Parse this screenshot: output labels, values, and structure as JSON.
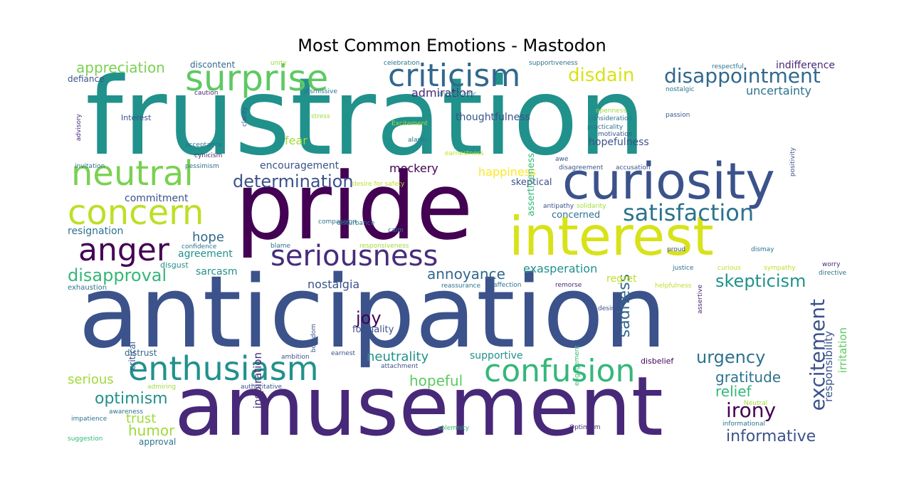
{
  "chart_data": {
    "type": "wordcloud",
    "title": "Most Common Emotions - Mastodon",
    "colormap": "viridis",
    "words": [
      {
        "text": "frustration",
        "weight": 1.0,
        "color": "#21918c"
      },
      {
        "text": "anticipation",
        "weight": 0.98,
        "color": "#3b528b"
      },
      {
        "text": "amusement",
        "weight": 0.95,
        "color": "#482878"
      },
      {
        "text": "pride",
        "weight": 0.9,
        "color": "#440154"
      },
      {
        "text": "interest",
        "weight": 0.6,
        "color": "#d8e219"
      },
      {
        "text": "curiosity",
        "weight": 0.55,
        "color": "#3b528b"
      },
      {
        "text": "surprise",
        "weight": 0.42,
        "color": "#5ec962"
      },
      {
        "text": "criticism",
        "weight": 0.4,
        "color": "#31688e"
      },
      {
        "text": "enthusiasm",
        "weight": 0.42,
        "color": "#21918c"
      },
      {
        "text": "confusion",
        "weight": 0.4,
        "color": "#35b779"
      },
      {
        "text": "neutral",
        "weight": 0.42,
        "color": "#7ad151"
      },
      {
        "text": "concern",
        "weight": 0.42,
        "color": "#bddf26"
      },
      {
        "text": "anger",
        "weight": 0.35,
        "color": "#440154"
      },
      {
        "text": "seriousness",
        "weight": 0.35,
        "color": "#472c7a"
      },
      {
        "text": "satisfaction",
        "weight": 0.3,
        "color": "#2c728e"
      },
      {
        "text": "disappointment",
        "weight": 0.26,
        "color": "#31688e"
      },
      {
        "text": "excitement",
        "weight": 0.25,
        "color": "#3b528b"
      },
      {
        "text": "determination",
        "weight": 0.2,
        "color": "#3b528b"
      },
      {
        "text": "disapproval",
        "weight": 0.2,
        "color": "#35b779"
      },
      {
        "text": "skepticism",
        "weight": 0.2,
        "color": "#21918c"
      },
      {
        "text": "irony",
        "weight": 0.2,
        "color": "#440154"
      },
      {
        "text": "urgency",
        "weight": 0.18,
        "color": "#2c728e"
      },
      {
        "text": "informative",
        "weight": 0.18,
        "color": "#3b528b"
      },
      {
        "text": "annoyance",
        "weight": 0.18,
        "color": "#31688e"
      },
      {
        "text": "disdain",
        "weight": 0.16,
        "color": "#d8e219"
      },
      {
        "text": "appreciation",
        "weight": 0.15,
        "color": "#7ad151"
      },
      {
        "text": "optimism",
        "weight": 0.15,
        "color": "#21918c"
      },
      {
        "text": "sadness",
        "weight": 0.15,
        "color": "#31688e"
      },
      {
        "text": "hopeful",
        "weight": 0.14,
        "color": "#5ec962"
      },
      {
        "text": "joy",
        "weight": 0.14,
        "color": "#440154"
      },
      {
        "text": "humor",
        "weight": 0.14,
        "color": "#a0da39"
      },
      {
        "text": "gratitude",
        "weight": 0.14,
        "color": "#2c728e"
      },
      {
        "text": "relief",
        "weight": 0.14,
        "color": "#35b779"
      },
      {
        "text": "hope",
        "weight": 0.13,
        "color": "#31688e"
      },
      {
        "text": "neutrality",
        "weight": 0.13,
        "color": "#21918c"
      },
      {
        "text": "trust",
        "weight": 0.13,
        "color": "#a0da39"
      },
      {
        "text": "serious",
        "weight": 0.13,
        "color": "#a0da39"
      },
      {
        "text": "uncertainty",
        "weight": 0.12,
        "color": "#2c728e"
      },
      {
        "text": "admiration",
        "weight": 0.12,
        "color": "#482878"
      },
      {
        "text": "fear",
        "weight": 0.12,
        "color": "#a0da39"
      },
      {
        "text": "mockery",
        "weight": 0.12,
        "color": "#440154"
      },
      {
        "text": "happiness",
        "weight": 0.12,
        "color": "#fde725"
      },
      {
        "text": "nostalgia",
        "weight": 0.12,
        "color": "#3b528b"
      },
      {
        "text": "exasperation",
        "weight": 0.12,
        "color": "#21918c"
      },
      {
        "text": "inspiration",
        "weight": 0.12,
        "color": "#472c7a"
      },
      {
        "text": "irritation",
        "weight": 0.12,
        "color": "#5ec962"
      },
      {
        "text": "responsibility",
        "weight": 0.12,
        "color": "#3b528b"
      },
      {
        "text": "encouragement",
        "weight": 0.11,
        "color": "#3b528b"
      },
      {
        "text": "resignation",
        "weight": 0.11,
        "color": "#2c728e"
      },
      {
        "text": "agreement",
        "weight": 0.11,
        "color": "#21918c"
      },
      {
        "text": "indifference",
        "weight": 0.11,
        "color": "#482878"
      },
      {
        "text": "thoughtfulness",
        "weight": 0.1,
        "color": "#3b528b"
      },
      {
        "text": "hopefulness",
        "weight": 0.1,
        "color": "#3b528b"
      },
      {
        "text": "commitment",
        "weight": 0.1,
        "color": "#3b528b"
      },
      {
        "text": "sarcasm",
        "weight": 0.1,
        "color": "#21918c"
      },
      {
        "text": "regret",
        "weight": 0.1,
        "color": "#bddf26"
      },
      {
        "text": "supportive",
        "weight": 0.1,
        "color": "#21918c"
      },
      {
        "text": "skeptical",
        "weight": 0.09,
        "color": "#3b528b"
      },
      {
        "text": "concerned",
        "weight": 0.09,
        "color": "#2c728e"
      },
      {
        "text": "assertiveness",
        "weight": 0.09,
        "color": "#35b779"
      },
      {
        "text": "formality",
        "weight": 0.09,
        "color": "#3b528b"
      },
      {
        "text": "discontent",
        "weight": 0.09,
        "color": "#31688e"
      },
      {
        "text": "defiance",
        "weight": 0.09,
        "color": "#3b528b"
      },
      {
        "text": "approval",
        "weight": 0.09,
        "color": "#2c728e"
      },
      {
        "text": "distrust",
        "weight": 0.09,
        "color": "#31688e"
      },
      {
        "text": "critical",
        "weight": 0.09,
        "color": "#3b528b"
      },
      {
        "text": "disgust",
        "weight": 0.08,
        "color": "#21918c"
      },
      {
        "text": "exhaustion",
        "weight": 0.08,
        "color": "#2c728e"
      },
      {
        "text": "disbelief",
        "weight": 0.08,
        "color": "#440154"
      },
      {
        "text": "Interest",
        "weight": 0.08,
        "color": "#3b528b"
      },
      {
        "text": "caution",
        "weight": 0.07,
        "color": "#482878"
      },
      {
        "text": "clarity",
        "weight": 0.07,
        "color": "#3b528b"
      },
      {
        "text": "dismissive",
        "weight": 0.07,
        "color": "#2c728e"
      },
      {
        "text": "enthusiastic",
        "weight": 0.07,
        "color": "#21918c"
      },
      {
        "text": "nostalgic",
        "weight": 0.07,
        "color": "#2c728e"
      },
      {
        "text": "respectful",
        "weight": 0.07,
        "color": "#2c728e"
      },
      {
        "text": "celebration",
        "weight": 0.07,
        "color": "#2c728e"
      },
      {
        "text": "supportiveness",
        "weight": 0.07,
        "color": "#2c728e"
      },
      {
        "text": "unity",
        "weight": 0.07,
        "color": "#a0da39"
      },
      {
        "text": "advisory",
        "weight": 0.07,
        "color": "#472c7a"
      },
      {
        "text": "stress",
        "weight": 0.07,
        "color": "#a0da39"
      },
      {
        "text": "Excitement",
        "weight": 0.07,
        "color": "#a0da39"
      },
      {
        "text": "openness",
        "weight": 0.07,
        "color": "#a0da39"
      },
      {
        "text": "consideration",
        "weight": 0.07,
        "color": "#2c728e"
      },
      {
        "text": "practicality",
        "weight": 0.07,
        "color": "#2c728e"
      },
      {
        "text": "motivation",
        "weight": 0.07,
        "color": "#3b528b"
      },
      {
        "text": "passion",
        "weight": 0.07,
        "color": "#3b528b"
      },
      {
        "text": "positivity",
        "weight": 0.07,
        "color": "#3b528b"
      },
      {
        "text": "acceptance",
        "weight": 0.07,
        "color": "#2c728e"
      },
      {
        "text": "alarm",
        "weight": 0.07,
        "color": "#2c728e"
      },
      {
        "text": "cynicism",
        "weight": 0.07,
        "color": "#482878"
      },
      {
        "text": "earnestness",
        "weight": 0.07,
        "color": "#bddf26"
      },
      {
        "text": "awe",
        "weight": 0.07,
        "color": "#3b528b"
      },
      {
        "text": "invitation",
        "weight": 0.07,
        "color": "#2c728e"
      },
      {
        "text": "pessimism",
        "weight": 0.07,
        "color": "#2c728e"
      },
      {
        "text": "disagreement",
        "weight": 0.07,
        "color": "#3b528b"
      },
      {
        "text": "accusation",
        "weight": 0.07,
        "color": "#3b528b"
      },
      {
        "text": "desire for safety",
        "weight": 0.07,
        "color": "#bddf26"
      },
      {
        "text": "antipathy",
        "weight": 0.07,
        "color": "#3b528b"
      },
      {
        "text": "solidarity",
        "weight": 0.07,
        "color": "#a0da39"
      },
      {
        "text": "disturbance",
        "weight": 0.07,
        "color": "#2c728e"
      },
      {
        "text": "compassion",
        "weight": 0.07,
        "color": "#2c728e"
      },
      {
        "text": "calm",
        "weight": 0.07,
        "color": "#2c728e"
      },
      {
        "text": "confidence",
        "weight": 0.07,
        "color": "#2c728e"
      },
      {
        "text": "blame",
        "weight": 0.07,
        "color": "#2c728e"
      },
      {
        "text": "responsiveness",
        "weight": 0.07,
        "color": "#a0da39"
      },
      {
        "text": "proud",
        "weight": 0.07,
        "color": "#3b528b"
      },
      {
        "text": "dismay",
        "weight": 0.07,
        "color": "#2c728e"
      },
      {
        "text": "worry",
        "weight": 0.07,
        "color": "#482878"
      },
      {
        "text": "directive",
        "weight": 0.07,
        "color": "#2c728e"
      },
      {
        "text": "assertive",
        "weight": 0.07,
        "color": "#482878"
      },
      {
        "text": "justice",
        "weight": 0.07,
        "color": "#2c728e"
      },
      {
        "text": "curious",
        "weight": 0.07,
        "color": "#bddf26"
      },
      {
        "text": "sympathy",
        "weight": 0.07,
        "color": "#bddf26"
      },
      {
        "text": "reassurance",
        "weight": 0.07,
        "color": "#2c728e"
      },
      {
        "text": "affection",
        "weight": 0.07,
        "color": "#2c728e"
      },
      {
        "text": "remorse",
        "weight": 0.07,
        "color": "#482878"
      },
      {
        "text": "helpfulness",
        "weight": 0.07,
        "color": "#bddf26"
      },
      {
        "text": "boredom",
        "weight": 0.07,
        "color": "#3b528b"
      },
      {
        "text": "desire",
        "weight": 0.07,
        "color": "#3b528b"
      },
      {
        "text": "engagement",
        "weight": 0.07,
        "color": "#35b779"
      },
      {
        "text": "ambition",
        "weight": 0.07,
        "color": "#3b528b"
      },
      {
        "text": "earnest",
        "weight": 0.07,
        "color": "#3b528b"
      },
      {
        "text": "attachment",
        "weight": 0.07,
        "color": "#3b528b"
      },
      {
        "text": "authoritative",
        "weight": 0.07,
        "color": "#3b528b"
      },
      {
        "text": "admiring",
        "weight": 0.07,
        "color": "#a0da39"
      },
      {
        "text": "awareness",
        "weight": 0.07,
        "color": "#2c728e"
      },
      {
        "text": "impatience",
        "weight": 0.07,
        "color": "#2c728e"
      },
      {
        "text": "suggestion",
        "weight": 0.07,
        "color": "#35b779"
      },
      {
        "text": "Neutral",
        "weight": 0.07,
        "color": "#a0da39"
      },
      {
        "text": "informational",
        "weight": 0.07,
        "color": "#2c728e"
      },
      {
        "text": "solemnity",
        "weight": 0.07,
        "color": "#35b779"
      },
      {
        "text": "Optimism",
        "weight": 0.07,
        "color": "#482878"
      }
    ]
  }
}
